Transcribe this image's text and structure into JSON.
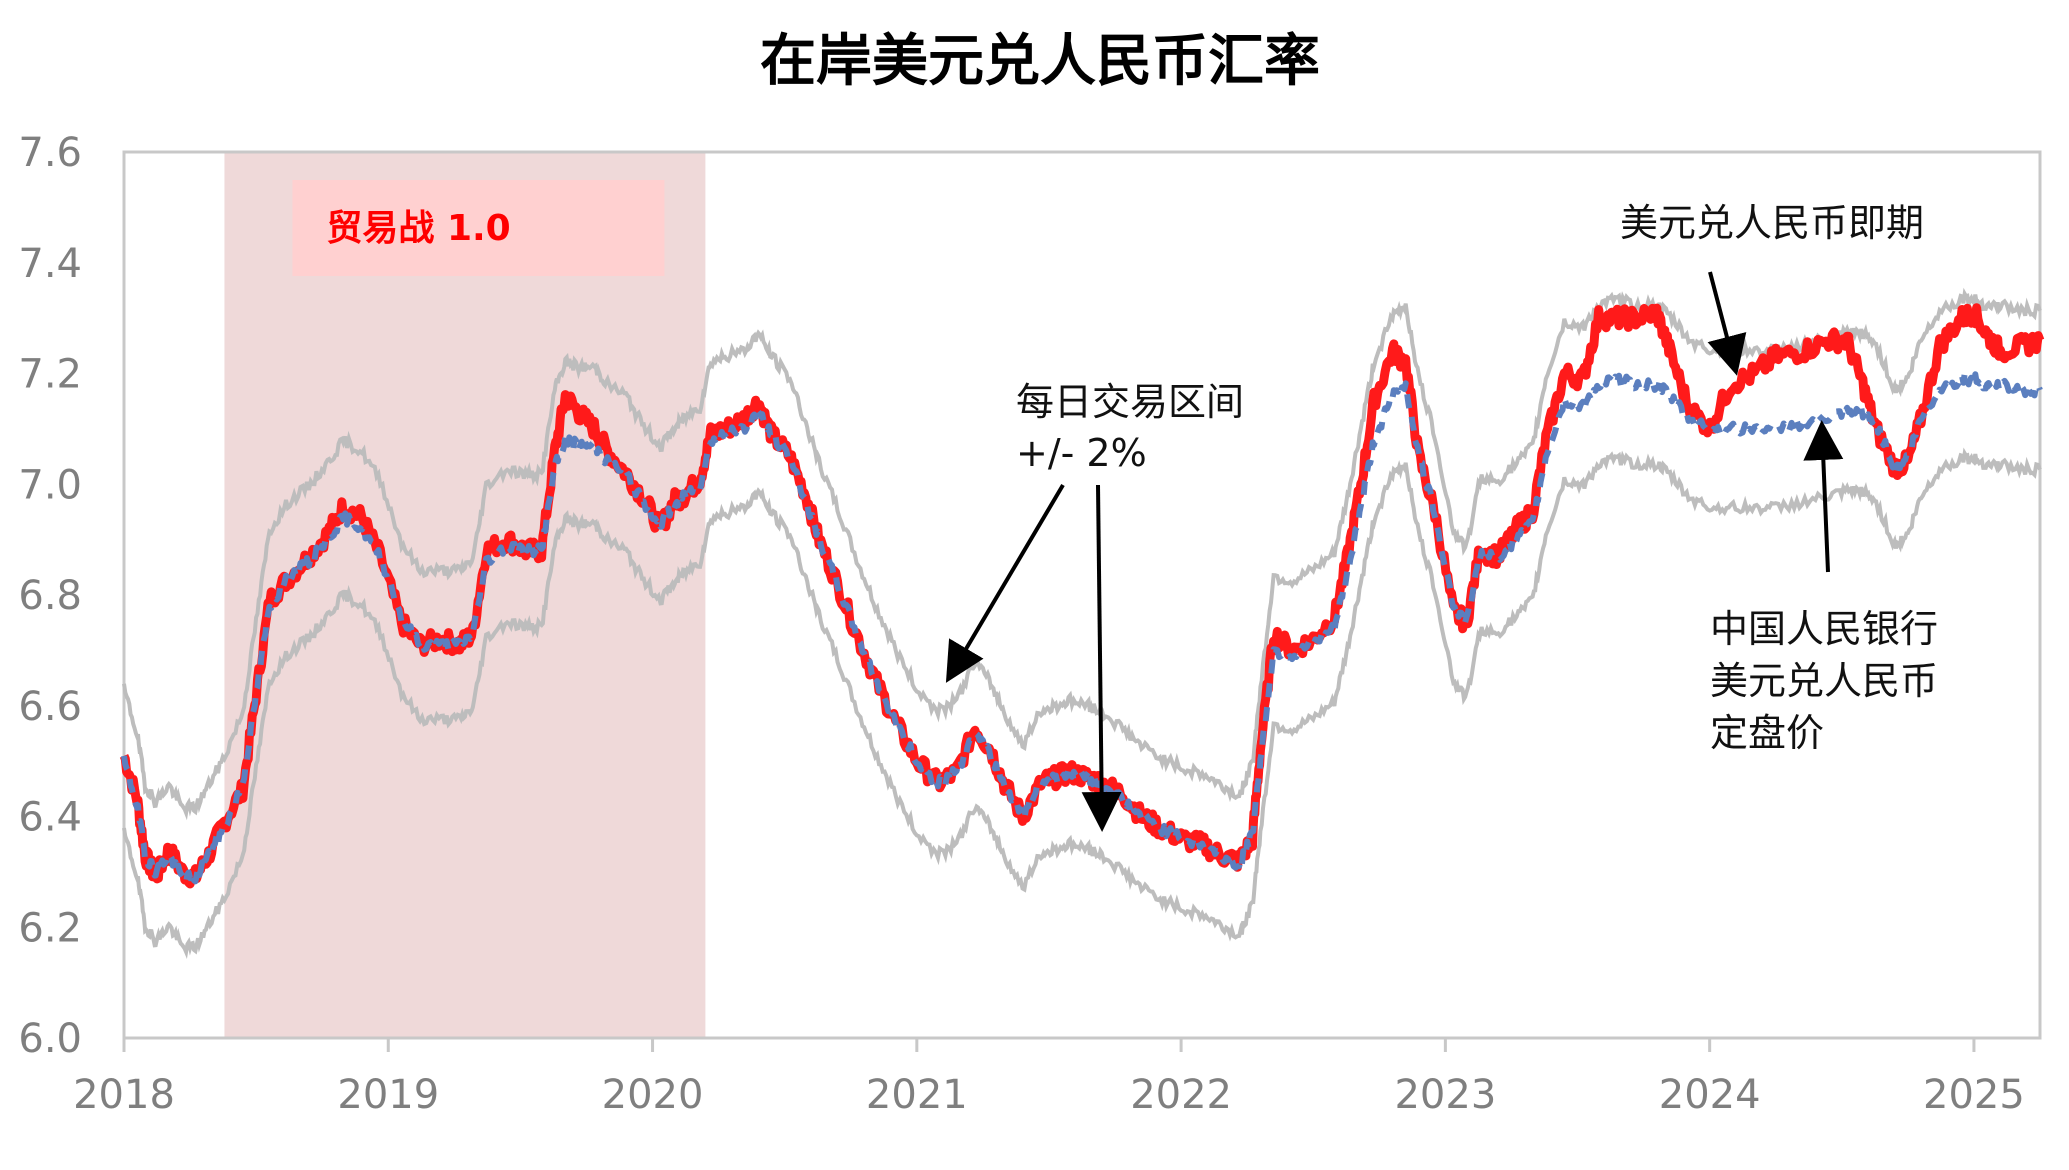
{
  "chart_data": {
    "type": "line",
    "title": "在岸美元兑人民币汇率",
    "xlim": [
      2018.0,
      2025.25
    ],
    "ylim": [
      6.0,
      7.6
    ],
    "yticks": [
      "6.0",
      "6.2",
      "6.4",
      "6.6",
      "6.8",
      "7.0",
      "7.2",
      "7.4",
      "7.6"
    ],
    "xticks": [
      "2018",
      "2019",
      "2020",
      "2021",
      "2022",
      "2023",
      "2024",
      "2025"
    ],
    "grid": false,
    "shaded_region": {
      "label": "贸易战 1.0",
      "x": [
        2018.38,
        2020.2
      ]
    },
    "colors": {
      "spot": "#ff1a1a",
      "fix": "#5b7fbf",
      "band": "#bdbdbd",
      "shade": "#efd9d9",
      "label_box": "#ffd0d0",
      "label_text": "#ff0000"
    },
    "annotations": {
      "spot_label": "美元兑人民币即期",
      "band_label_1": "每日交易区间",
      "band_label_2": "+/- 2%",
      "fix_label_1": "中国人民银行",
      "fix_label_2": "美元兑人民币",
      "fix_label_3": "定盘价"
    },
    "series": {
      "spot_points": [
        [
          2018.0,
          6.51
        ],
        [
          2018.05,
          6.43
        ],
        [
          2018.08,
          6.33
        ],
        [
          2018.12,
          6.29
        ],
        [
          2018.17,
          6.34
        ],
        [
          2018.22,
          6.3
        ],
        [
          2018.27,
          6.29
        ],
        [
          2018.32,
          6.33
        ],
        [
          2018.38,
          6.39
        ],
        [
          2018.45,
          6.45
        ],
        [
          2018.5,
          6.62
        ],
        [
          2018.55,
          6.79
        ],
        [
          2018.62,
          6.83
        ],
        [
          2018.7,
          6.87
        ],
        [
          2018.77,
          6.91
        ],
        [
          2018.83,
          6.96
        ],
        [
          2018.9,
          6.94
        ],
        [
          2018.97,
          6.87
        ],
        [
          2019.05,
          6.75
        ],
        [
          2019.12,
          6.71
        ],
        [
          2019.2,
          6.72
        ],
        [
          2019.27,
          6.71
        ],
        [
          2019.32,
          6.73
        ],
        [
          2019.37,
          6.88
        ],
        [
          2019.45,
          6.9
        ],
        [
          2019.52,
          6.88
        ],
        [
          2019.58,
          6.88
        ],
        [
          2019.63,
          7.06
        ],
        [
          2019.67,
          7.16
        ],
        [
          2019.72,
          7.13
        ],
        [
          2019.78,
          7.1
        ],
        [
          2019.83,
          7.06
        ],
        [
          2019.9,
          7.02
        ],
        [
          2019.96,
          6.98
        ],
        [
          2020.03,
          6.92
        ],
        [
          2020.08,
          6.97
        ],
        [
          2020.12,
          6.98
        ],
        [
          2020.18,
          7.01
        ],
        [
          2020.22,
          7.09
        ],
        [
          2020.28,
          7.1
        ],
        [
          2020.35,
          7.12
        ],
        [
          2020.4,
          7.15
        ],
        [
          2020.45,
          7.09
        ],
        [
          2020.52,
          7.05
        ],
        [
          2020.58,
          6.98
        ],
        [
          2020.63,
          6.9
        ],
        [
          2020.7,
          6.82
        ],
        [
          2020.78,
          6.72
        ],
        [
          2020.85,
          6.64
        ],
        [
          2020.92,
          6.57
        ],
        [
          2021.0,
          6.5
        ],
        [
          2021.08,
          6.46
        ],
        [
          2021.15,
          6.48
        ],
        [
          2021.22,
          6.56
        ],
        [
          2021.28,
          6.52
        ],
        [
          2021.33,
          6.46
        ],
        [
          2021.4,
          6.4
        ],
        [
          2021.47,
          6.46
        ],
        [
          2021.52,
          6.47
        ],
        [
          2021.58,
          6.48
        ],
        [
          2021.65,
          6.47
        ],
        [
          2021.7,
          6.46
        ],
        [
          2021.78,
          6.44
        ],
        [
          2021.85,
          6.4
        ],
        [
          2021.92,
          6.38
        ],
        [
          2022.0,
          6.36
        ],
        [
          2022.08,
          6.35
        ],
        [
          2022.15,
          6.33
        ],
        [
          2022.22,
          6.32
        ],
        [
          2022.27,
          6.36
        ],
        [
          2022.3,
          6.52
        ],
        [
          2022.35,
          6.73
        ],
        [
          2022.42,
          6.7
        ],
        [
          2022.5,
          6.72
        ],
        [
          2022.58,
          6.76
        ],
        [
          2022.63,
          6.87
        ],
        [
          2022.68,
          7.0
        ],
        [
          2022.73,
          7.15
        ],
        [
          2022.8,
          7.24
        ],
        [
          2022.85,
          7.22
        ],
        [
          2022.9,
          7.05
        ],
        [
          2022.96,
          6.95
        ],
        [
          2023.03,
          6.77
        ],
        [
          2023.08,
          6.75
        ],
        [
          2023.13,
          6.88
        ],
        [
          2023.2,
          6.87
        ],
        [
          2023.27,
          6.92
        ],
        [
          2023.33,
          6.95
        ],
        [
          2023.38,
          7.08
        ],
        [
          2023.45,
          7.2
        ],
        [
          2023.52,
          7.19
        ],
        [
          2023.58,
          7.3
        ],
        [
          2023.65,
          7.3
        ],
        [
          2023.72,
          7.3
        ],
        [
          2023.8,
          7.31
        ],
        [
          2023.85,
          7.24
        ],
        [
          2023.92,
          7.14
        ],
        [
          2024.0,
          7.1
        ],
        [
          2024.08,
          7.18
        ],
        [
          2024.17,
          7.2
        ],
        [
          2024.25,
          7.23
        ],
        [
          2024.35,
          7.24
        ],
        [
          2024.45,
          7.26
        ],
        [
          2024.52,
          7.26
        ],
        [
          2024.58,
          7.18
        ],
        [
          2024.63,
          7.1
        ],
        [
          2024.7,
          7.03
        ],
        [
          2024.75,
          7.04
        ],
        [
          2024.8,
          7.12
        ],
        [
          2024.87,
          7.25
        ],
        [
          2024.95,
          7.3
        ],
        [
          2025.0,
          7.31
        ],
        [
          2025.05,
          7.27
        ],
        [
          2025.1,
          7.24
        ],
        [
          2025.18,
          7.25
        ],
        [
          2025.25,
          7.26
        ]
      ],
      "fix_points": [
        [
          2018.0,
          6.5
        ],
        [
          2018.05,
          6.42
        ],
        [
          2018.08,
          6.33
        ],
        [
          2018.12,
          6.3
        ],
        [
          2018.17,
          6.33
        ],
        [
          2018.22,
          6.29
        ],
        [
          2018.27,
          6.29
        ],
        [
          2018.32,
          6.33
        ],
        [
          2018.38,
          6.38
        ],
        [
          2018.45,
          6.46
        ],
        [
          2018.5,
          6.62
        ],
        [
          2018.55,
          6.78
        ],
        [
          2018.62,
          6.83
        ],
        [
          2018.7,
          6.86
        ],
        [
          2018.77,
          6.9
        ],
        [
          2018.83,
          6.94
        ],
        [
          2018.9,
          6.92
        ],
        [
          2018.97,
          6.87
        ],
        [
          2019.05,
          6.76
        ],
        [
          2019.12,
          6.71
        ],
        [
          2019.2,
          6.71
        ],
        [
          2019.27,
          6.71
        ],
        [
          2019.32,
          6.73
        ],
        [
          2019.37,
          6.86
        ],
        [
          2019.45,
          6.89
        ],
        [
          2019.52,
          6.88
        ],
        [
          2019.58,
          6.88
        ],
        [
          2019.63,
          7.03
        ],
        [
          2019.67,
          7.08
        ],
        [
          2019.72,
          7.07
        ],
        [
          2019.78,
          7.07
        ],
        [
          2019.83,
          7.04
        ],
        [
          2019.9,
          7.02
        ],
        [
          2019.96,
          6.97
        ],
        [
          2020.03,
          6.93
        ],
        [
          2020.08,
          6.96
        ],
        [
          2020.12,
          6.98
        ],
        [
          2020.18,
          7.0
        ],
        [
          2020.22,
          7.08
        ],
        [
          2020.28,
          7.09
        ],
        [
          2020.35,
          7.1
        ],
        [
          2020.4,
          7.13
        ],
        [
          2020.45,
          7.09
        ],
        [
          2020.52,
          7.05
        ],
        [
          2020.58,
          6.97
        ],
        [
          2020.63,
          6.9
        ],
        [
          2020.7,
          6.82
        ],
        [
          2020.78,
          6.72
        ],
        [
          2020.85,
          6.64
        ],
        [
          2020.92,
          6.57
        ],
        [
          2021.0,
          6.5
        ],
        [
          2021.08,
          6.46
        ],
        [
          2021.15,
          6.48
        ],
        [
          2021.22,
          6.55
        ],
        [
          2021.28,
          6.51
        ],
        [
          2021.33,
          6.46
        ],
        [
          2021.4,
          6.4
        ],
        [
          2021.47,
          6.46
        ],
        [
          2021.52,
          6.47
        ],
        [
          2021.58,
          6.48
        ],
        [
          2021.65,
          6.47
        ],
        [
          2021.7,
          6.46
        ],
        [
          2021.78,
          6.43
        ],
        [
          2021.85,
          6.4
        ],
        [
          2021.92,
          6.38
        ],
        [
          2022.0,
          6.36
        ],
        [
          2022.08,
          6.35
        ],
        [
          2022.15,
          6.33
        ],
        [
          2022.22,
          6.31
        ],
        [
          2022.27,
          6.37
        ],
        [
          2022.3,
          6.5
        ],
        [
          2022.35,
          6.7
        ],
        [
          2022.42,
          6.69
        ],
        [
          2022.5,
          6.71
        ],
        [
          2022.58,
          6.74
        ],
        [
          2022.63,
          6.84
        ],
        [
          2022.68,
          6.96
        ],
        [
          2022.73,
          7.08
        ],
        [
          2022.8,
          7.16
        ],
        [
          2022.85,
          7.18
        ],
        [
          2022.9,
          7.05
        ],
        [
          2022.96,
          6.95
        ],
        [
          2023.03,
          6.78
        ],
        [
          2023.08,
          6.75
        ],
        [
          2023.13,
          6.87
        ],
        [
          2023.2,
          6.87
        ],
        [
          2023.27,
          6.9
        ],
        [
          2023.33,
          6.93
        ],
        [
          2023.38,
          7.05
        ],
        [
          2023.45,
          7.15
        ],
        [
          2023.52,
          7.14
        ],
        [
          2023.58,
          7.18
        ],
        [
          2023.65,
          7.19
        ],
        [
          2023.72,
          7.18
        ],
        [
          2023.8,
          7.18
        ],
        [
          2023.85,
          7.16
        ],
        [
          2023.92,
          7.12
        ],
        [
          2024.0,
          7.1
        ],
        [
          2024.08,
          7.1
        ],
        [
          2024.17,
          7.1
        ],
        [
          2024.25,
          7.1
        ],
        [
          2024.35,
          7.11
        ],
        [
          2024.45,
          7.12
        ],
        [
          2024.52,
          7.13
        ],
        [
          2024.58,
          7.13
        ],
        [
          2024.63,
          7.11
        ],
        [
          2024.7,
          7.03
        ],
        [
          2024.75,
          7.05
        ],
        [
          2024.8,
          7.12
        ],
        [
          2024.87,
          7.17
        ],
        [
          2024.95,
          7.19
        ],
        [
          2025.0,
          7.19
        ],
        [
          2025.05,
          7.18
        ],
        [
          2025.1,
          7.18
        ],
        [
          2025.18,
          7.17
        ],
        [
          2025.25,
          7.17
        ]
      ],
      "band_pct": 0.02
    }
  }
}
